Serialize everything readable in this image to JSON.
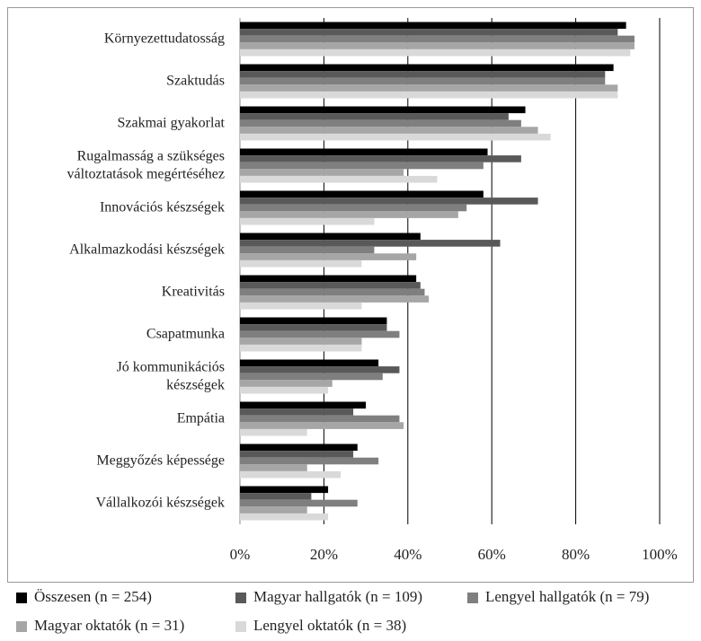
{
  "chart_data": {
    "type": "hbar",
    "categories": [
      "Környezettudatosság",
      "Szaktudás",
      "Szakmai gyakorlat",
      "Rugalmasság a szükséges\nváltoztatások megértéséhez",
      "Innovációs készségek",
      "Alkalmazkodási készségek",
      "Kreativitás",
      "Csapatmunka",
      "Jó kommunikációs\nkészségek",
      "Empátia",
      "Meggyőzés képessége",
      "Vállalkozói készségek"
    ],
    "series": [
      {
        "name": "Összesen (n = 254)",
        "color": "#000000",
        "values": [
          92,
          89,
          68,
          59,
          58,
          43,
          42,
          35,
          33,
          30,
          28,
          21
        ]
      },
      {
        "name": "Magyar hallgatók (n = 109)",
        "color": "#595959",
        "values": [
          90,
          87,
          64,
          67,
          71,
          62,
          43,
          35,
          38,
          27,
          27,
          17
        ]
      },
      {
        "name": "Lengyel hallgatók (n = 79)",
        "color": "#7f7f7f",
        "values": [
          94,
          87,
          67,
          58,
          54,
          32,
          44,
          38,
          34,
          38,
          33,
          28
        ]
      },
      {
        "name": "Magyar oktatók (n = 31)",
        "color": "#a6a6a6",
        "values": [
          94,
          90,
          71,
          39,
          52,
          42,
          45,
          29,
          22,
          39,
          16,
          16
        ]
      },
      {
        "name": "Lengyel oktatók (n = 38)",
        "color": "#d9d9d9",
        "values": [
          93,
          90,
          74,
          47,
          32,
          29,
          29,
          29,
          21,
          16,
          24,
          21
        ]
      }
    ],
    "xlim": [
      0,
      100
    ],
    "xticks": [
      {
        "value": 0,
        "label": "0%"
      },
      {
        "value": 20,
        "label": "20%"
      },
      {
        "value": 40,
        "label": "40%"
      },
      {
        "value": 60,
        "label": "60%"
      },
      {
        "value": 80,
        "label": "80%"
      },
      {
        "value": 100,
        "label": "100%"
      }
    ],
    "grid": true,
    "legend": "bottom"
  }
}
